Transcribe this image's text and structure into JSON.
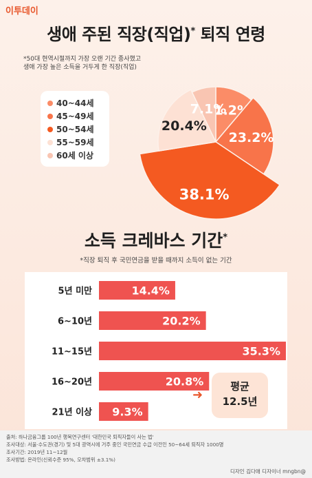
{
  "logo": "이투데이",
  "section1": {
    "title": "생애 주된 직장(직업)",
    "title_mark": "*",
    "title_tail": "퇴직 연령",
    "note": [
      "*50대 현역시절까지 가장 오랜 기간 종사했고",
      "생애 가장 높은 소득을 거두게 한 직장(직업)"
    ]
  },
  "section2": {
    "title": "소득 크레바스 기간",
    "title_mark": "*",
    "note": "*직장 퇴직 후 국민연금을 받을 때까지 소득이 없는 기간"
  },
  "average": {
    "label": "평균",
    "value": "12.5년"
  },
  "footer": {
    "lines": [
      "출처: 하나금융그룹 100년 행복연구센터 '대한민국 퇴직자들이 사는 법'",
      "조사대상: 서울·수도권(경기) 및 5대 광역시에 거주 중인 국민연금 수급 이전인 50~64세 퇴직자 1000명",
      "조사기간: 2019년 11~12월",
      "조사방법: 온라인(신뢰수준 95%, 오차범위 ±3.1%)"
    ],
    "credit": "디자인 김다애 디자이너 mngbn@"
  },
  "colors": {
    "c40": "#fb8c67",
    "c45": "#f8744a",
    "c50": "#f45a21",
    "c55": "#fde1d4",
    "c60": "#f9c5b2",
    "bar": "#ef5350"
  },
  "chart_data": [
    {
      "type": "pie",
      "title": "생애 주된 직장(직업) 퇴직 연령",
      "legend_position": "left",
      "slices": [
        {
          "label": "40~44세",
          "value": 11.2,
          "display": "11.2%",
          "color": "#fb8c67"
        },
        {
          "label": "45~49세",
          "value": 23.2,
          "display": "23.2%",
          "color": "#f8744a"
        },
        {
          "label": "50~54세",
          "value": 38.1,
          "display": "38.1%",
          "color": "#f45a21"
        },
        {
          "label": "55~59세",
          "value": 20.4,
          "display": "20.4%",
          "color": "#fde1d4"
        },
        {
          "label": "60세 이상",
          "value": 7.1,
          "display": "7.1%",
          "color": "#f9c5b2"
        }
      ]
    },
    {
      "type": "bar",
      "orientation": "horizontal",
      "title": "소득 크레바스 기간",
      "categories": [
        "5년 미만",
        "6~10년",
        "11~15년",
        "16~20년",
        "21년 이상"
      ],
      "values": [
        14.4,
        20.2,
        35.3,
        20.8,
        9.3
      ],
      "labels": [
        "14.4%",
        "20.2%",
        "35.3%",
        "20.8%",
        "9.3%"
      ],
      "xlim": [
        0,
        40
      ],
      "grid": false
    }
  ]
}
